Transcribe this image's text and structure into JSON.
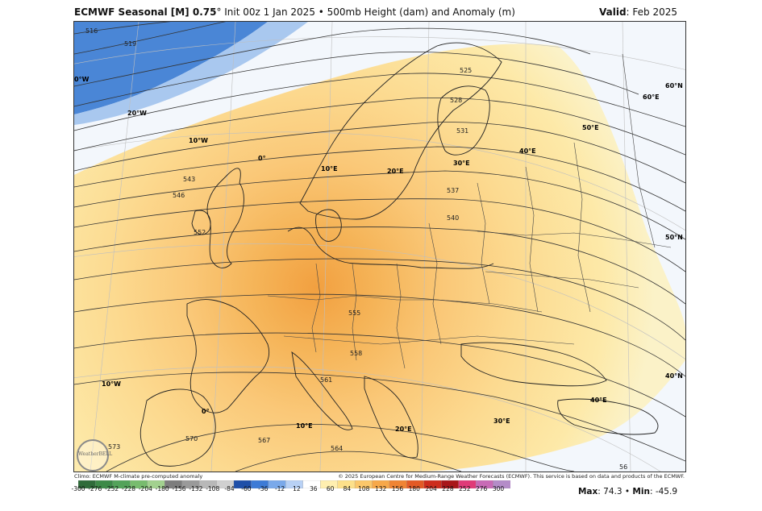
{
  "header": {
    "model": "ECMWF Seasonal [M] 0.75",
    "deg": "°",
    "init": " Init 00z 1 Jan 2025 • 500mb Height (dam) and Anomaly (m)",
    "valid_label": "Valid",
    "valid_value": ": Feb 2025"
  },
  "footer": {
    "climo": "Climo: ECMWF M-climate pre-computed anomaly",
    "copyright": "© 2025 European Centre for Medium-Range Weather Forecasts (ECMWF). This service is based on data and products of the ECMWF.",
    "logo_text": "WeatherBELL",
    "max_label": "Max",
    "max_value": ": 74.3 • ",
    "min_label": "Min",
    "min_value": ": -45.9"
  },
  "colorbar": {
    "ticks": [
      "-300",
      "-276",
      "-252",
      "-228",
      "-204",
      "-180",
      "-156",
      "-132",
      "-108",
      "-84",
      "-60",
      "-36",
      "-12",
      "12",
      "36",
      "60",
      "84",
      "108",
      "132",
      "156",
      "180",
      "204",
      "228",
      "252",
      "276",
      "300"
    ],
    "colors": [
      "#2f6b3a",
      "#3d8a48",
      "#53a35a",
      "#78bc6e",
      "#a2d18f",
      "#7d7d7d",
      "#9a9a9a",
      "#b8b8b8",
      "#d0d0d0",
      "#1f4fa8",
      "#3d7bd6",
      "#7aa9ea",
      "#b8d1f5",
      "#ffffff",
      "#ffefb0",
      "#fde08a",
      "#fbc76a",
      "#f7a84a",
      "#f08434",
      "#e35a26",
      "#cd2d1d",
      "#a8161a",
      "#e03a78",
      "#c86ab6",
      "#b48cc8"
    ]
  },
  "map": {
    "contour_labels": [
      "516",
      "519",
      "543",
      "546",
      "552",
      "525",
      "528",
      "531",
      "537",
      "540",
      "555",
      "558",
      "561",
      "564",
      "567",
      "570",
      "573",
      "56"
    ],
    "lat_labels": [
      "60°N",
      "50°N",
      "40°N"
    ],
    "lon_labels": [
      "0°W",
      "20°W",
      "10°W",
      "0°",
      "10°E",
      "20°E",
      "30°E",
      "40°E",
      "50°E",
      "60°E",
      "10°W",
      "0°",
      "10°E",
      "20°E",
      "30°E",
      "40°E"
    ]
  },
  "colors": {
    "anomaly_max": "#f2a040",
    "anomaly_mid": "#fcd488",
    "anomaly_low": "#fbedb0",
    "anomaly_negative": "#4a86d6"
  }
}
